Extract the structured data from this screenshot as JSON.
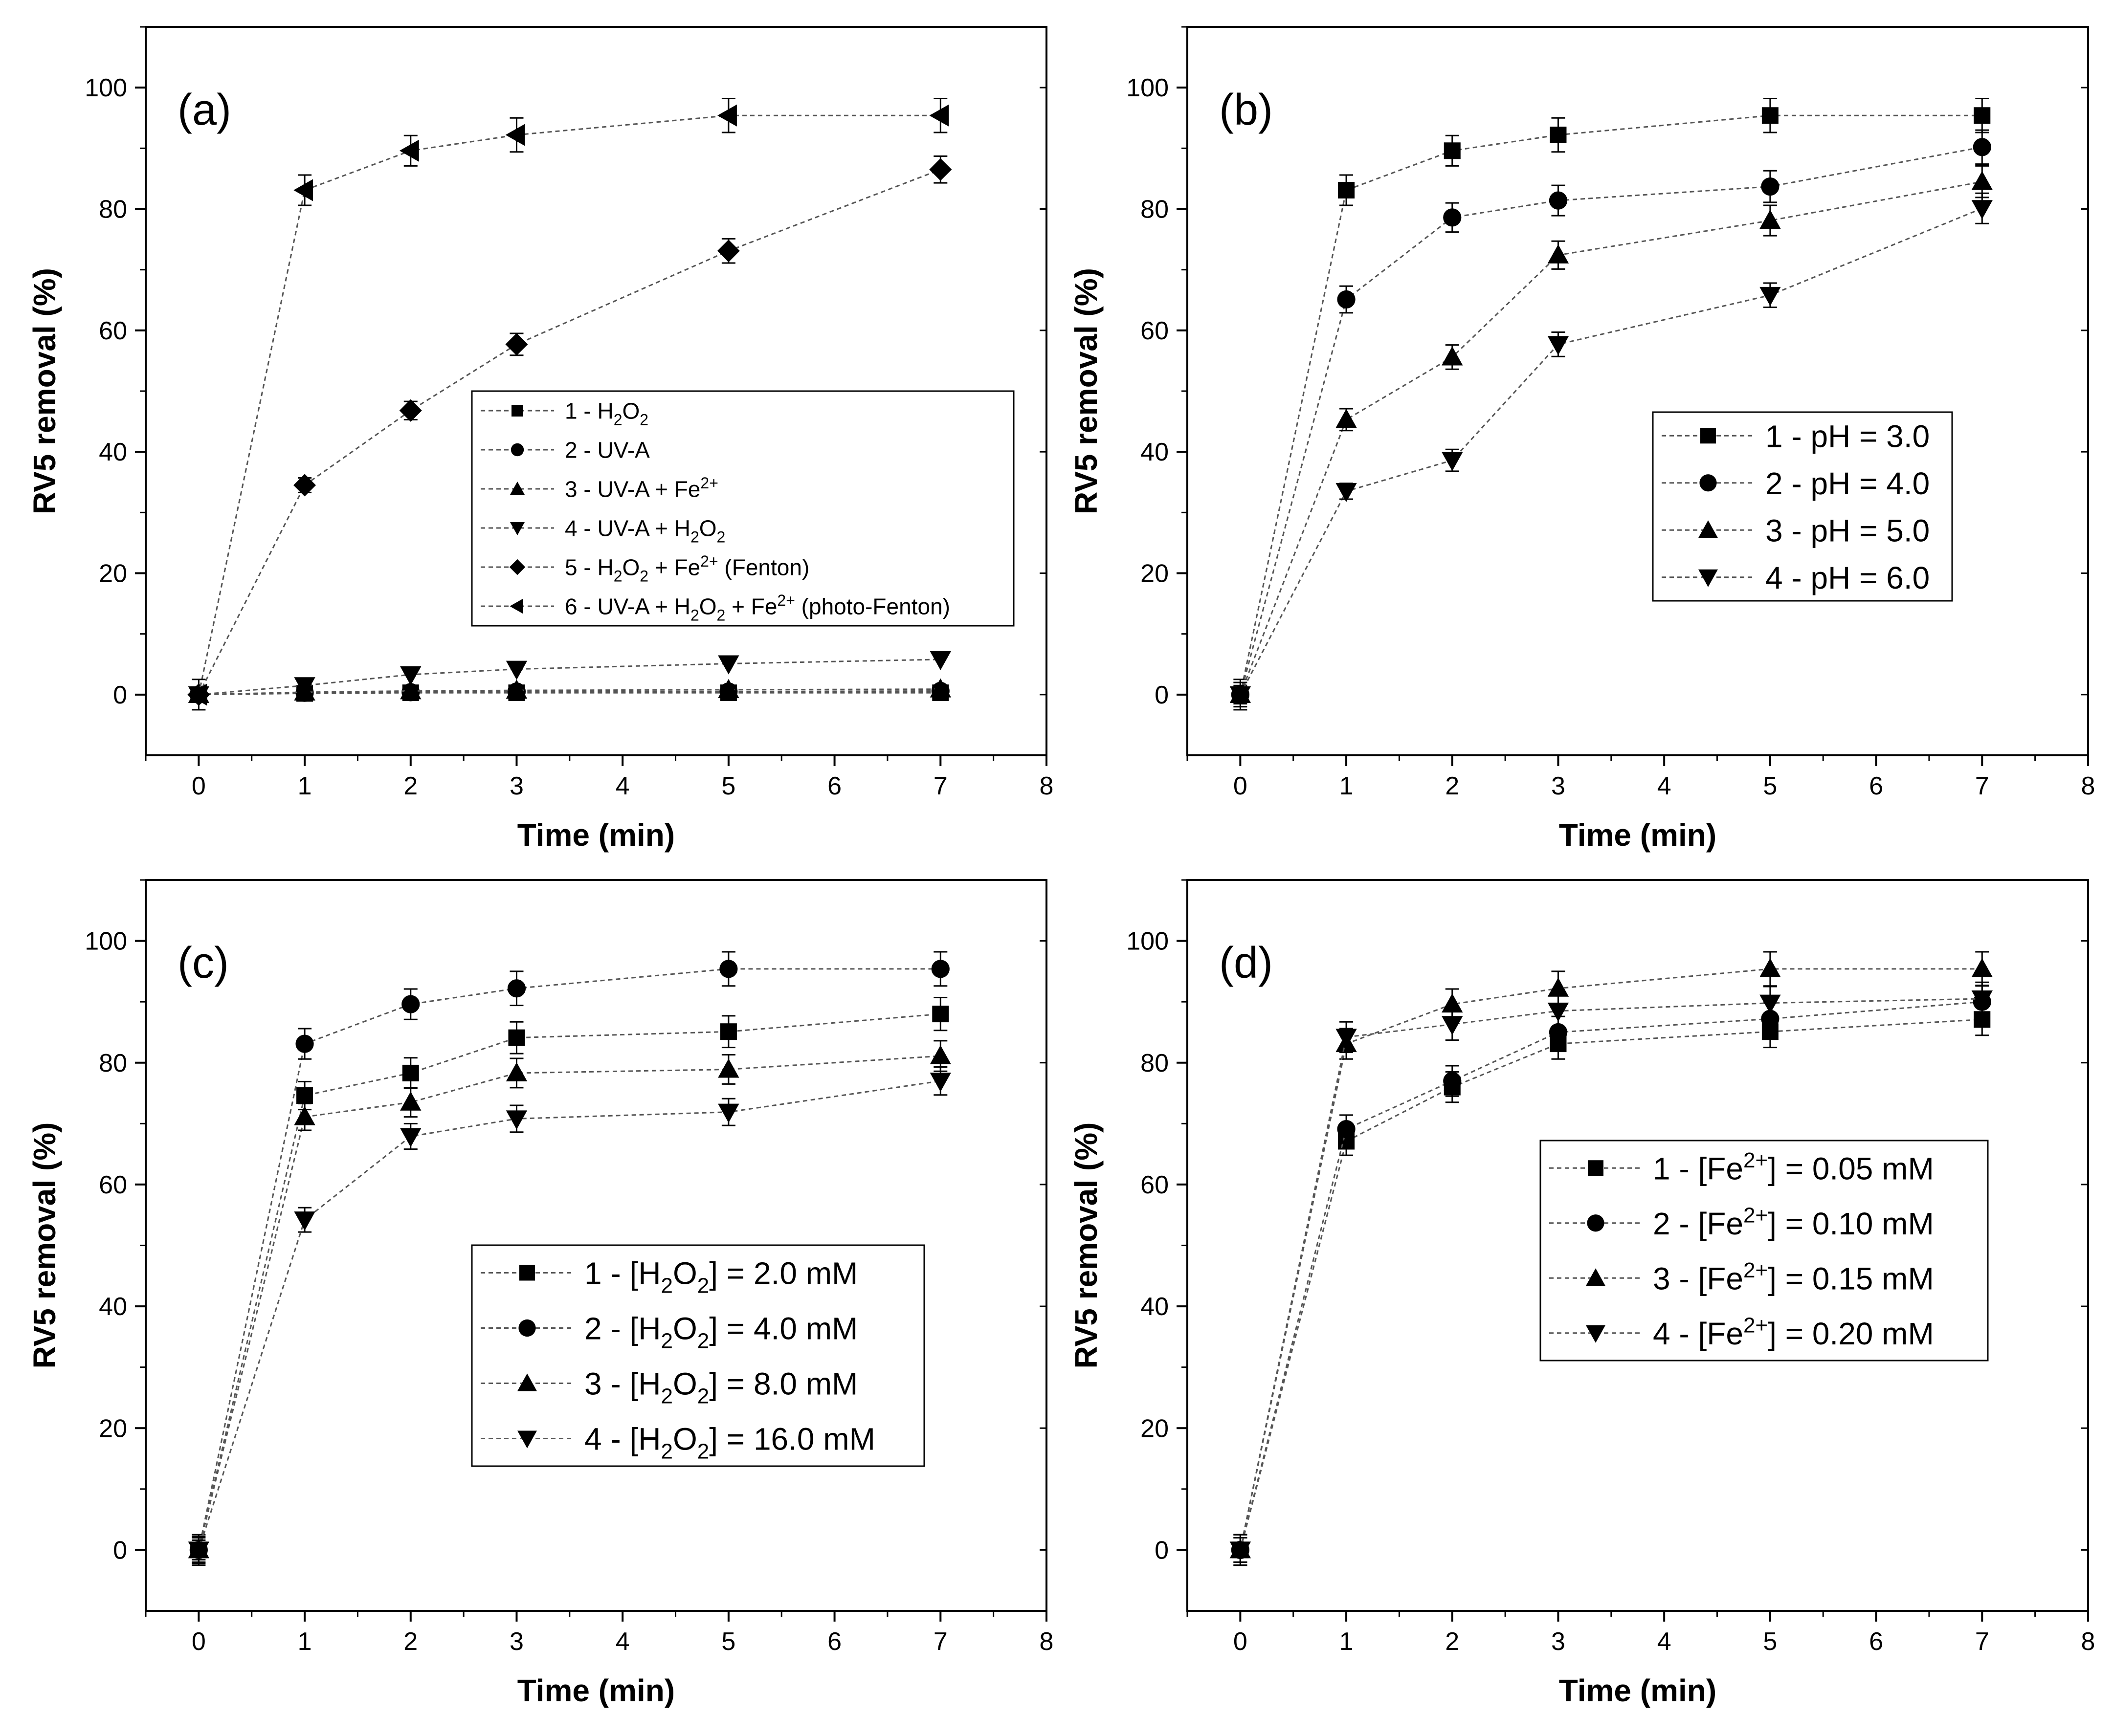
{
  "chart_data": [
    {
      "type": "line",
      "panel_label": "(a)",
      "xlabel": "Time (min)",
      "ylabel": "RV5 removal (%)",
      "xlim": [
        -0.5,
        8
      ],
      "ylim": [
        -10,
        110
      ],
      "xticks": [
        "0",
        "1",
        "2",
        "3",
        "4",
        "5",
        "6",
        "7",
        "8"
      ],
      "yticks": [
        "0",
        "20",
        "40",
        "60",
        "80",
        "100"
      ],
      "legend_position": "center-right",
      "x": [
        0,
        1,
        2,
        3,
        5,
        7
      ],
      "series": [
        {
          "name": "1 - H",
          "sub": "2",
          "suffix": "O",
          "sub2": "2",
          "tail": "",
          "marker": "square",
          "values": [
            0,
            0.2,
            0.3,
            0.3,
            0.3,
            0.3
          ],
          "errors": [
            0.5,
            0.5,
            0.5,
            0.5,
            0.5,
            0.5
          ]
        },
        {
          "name": "2 - UV-A",
          "marker": "circle",
          "values": [
            0,
            0.3,
            0.4,
            0.5,
            0.5,
            0.6
          ],
          "errors": [
            0.5,
            0.5,
            0.5,
            0.5,
            0.5,
            0.5
          ]
        },
        {
          "name": "3 - UV-A + Fe",
          "sup": "2+",
          "marker": "triangle-up",
          "values": [
            0,
            0.4,
            0.6,
            0.7,
            0.8,
            0.9
          ],
          "errors": [
            0.5,
            0.5,
            0.5,
            0.5,
            0.5,
            0.5
          ]
        },
        {
          "name": "4 - UV-A + H",
          "marker": "triangle-down",
          "values": [
            0,
            1.5,
            3.3,
            4.2,
            5.1,
            5.8
          ],
          "errors": [
            0.5,
            0.5,
            0.5,
            0.5,
            0.5,
            0.5
          ]
        },
        {
          "name": "5 - H",
          "marker": "diamond",
          "values": [
            0,
            34.5,
            46.8,
            57.7,
            73.1,
            86.5
          ],
          "errors": [
            1.0,
            1.2,
            1.5,
            1.8,
            2.0,
            2.2
          ]
        },
        {
          "name": "6 - UV-A + H",
          "marker": "triangle-left",
          "values": [
            0,
            83.1,
            89.6,
            92.2,
            95.4,
            95.4
          ],
          "errors": [
            2.5,
            2.5,
            2.5,
            2.8,
            2.8,
            2.8
          ]
        }
      ],
      "legend_entries": [
        [
          {
            "t": "1 - H"
          },
          {
            "t": "2",
            "s": "sub"
          },
          {
            "t": "O"
          },
          {
            "t": "2",
            "s": "sub"
          }
        ],
        [
          {
            "t": "2 - UV-A"
          }
        ],
        [
          {
            "t": "3 - UV-A + Fe"
          },
          {
            "t": "2+",
            "s": "sup"
          }
        ],
        [
          {
            "t": "4 - UV-A + H"
          },
          {
            "t": "2",
            "s": "sub"
          },
          {
            "t": "O"
          },
          {
            "t": "2",
            "s": "sub"
          }
        ],
        [
          {
            "t": "5 - H"
          },
          {
            "t": "2",
            "s": "sub"
          },
          {
            "t": "O"
          },
          {
            "t": "2",
            "s": "sub"
          },
          {
            "t": " + Fe"
          },
          {
            "t": "2+",
            "s": "sup"
          },
          {
            "t": " (Fenton)"
          }
        ],
        [
          {
            "t": "6 - UV-A + H"
          },
          {
            "t": "2",
            "s": "sub"
          },
          {
            "t": "O"
          },
          {
            "t": "2",
            "s": "sub"
          },
          {
            "t": " + Fe"
          },
          {
            "t": "2+",
            "s": "sup"
          },
          {
            "t": " (photo-Fenton)"
          }
        ]
      ]
    },
    {
      "type": "line",
      "panel_label": "(b)",
      "xlabel": "Time (min)",
      "ylabel": "RV5 removal (%)",
      "xlim": [
        -0.5,
        8
      ],
      "ylim": [
        -10,
        110
      ],
      "xticks": [
        "0",
        "1",
        "2",
        "3",
        "4",
        "5",
        "6",
        "7",
        "8"
      ],
      "yticks": [
        "0",
        "20",
        "40",
        "60",
        "80",
        "100"
      ],
      "legend_position": "center-right",
      "x": [
        0,
        1,
        2,
        3,
        5,
        7
      ],
      "series": [
        {
          "name": "1 - pH = 3.0",
          "marker": "square",
          "values": [
            0,
            83.1,
            89.6,
            92.2,
            95.4,
            95.4
          ],
          "errors": [
            2.5,
            2.5,
            2.5,
            2.8,
            2.8,
            2.8
          ]
        },
        {
          "name": "2 - pH = 4.0",
          "marker": "circle",
          "values": [
            0,
            65.1,
            78.6,
            81.4,
            83.7,
            90.2
          ],
          "errors": [
            2.0,
            2.2,
            2.4,
            2.5,
            2.6,
            2.8
          ]
        },
        {
          "name": "3 - pH = 5.0",
          "marker": "triangle-up",
          "values": [
            0,
            45.3,
            55.6,
            72.4,
            78.1,
            84.5
          ],
          "errors": [
            1.5,
            1.8,
            2.0,
            2.3,
            2.5,
            2.6
          ]
        },
        {
          "name": "4 - pH = 6.0",
          "marker": "triangle-down",
          "values": [
            0,
            33.5,
            38.6,
            57.7,
            65.8,
            80.1
          ],
          "errors": [
            1.2,
            1.3,
            1.8,
            2.0,
            2.0,
            2.5
          ]
        }
      ],
      "legend_entries": [
        [
          {
            "t": "1 - pH = 3.0"
          }
        ],
        [
          {
            "t": "2 - pH = 4.0"
          }
        ],
        [
          {
            "t": "3 - pH = 5.0"
          }
        ],
        [
          {
            "t": "4 - pH = 6.0"
          }
        ]
      ]
    },
    {
      "type": "line",
      "panel_label": "(c)",
      "xlabel": "Time (min)",
      "ylabel": "RV5 removal (%)",
      "xlim": [
        -0.5,
        8
      ],
      "ylim": [
        -10,
        110
      ],
      "xticks": [
        "0",
        "1",
        "2",
        "3",
        "4",
        "5",
        "6",
        "7",
        "8"
      ],
      "yticks": [
        "0",
        "20",
        "40",
        "60",
        "80",
        "100"
      ],
      "legend_position": "center-right",
      "x": [
        0,
        1,
        2,
        3,
        5,
        7
      ],
      "series": [
        {
          "name": "1 - [H2O2] = 2.0 mM",
          "marker": "square",
          "values": [
            0,
            74.6,
            78.3,
            84.1,
            85.1,
            88.0
          ],
          "errors": [
            2.2,
            2.3,
            2.5,
            2.6,
            2.6,
            2.7
          ]
        },
        {
          "name": "2 - [H2O2] = 4.0 mM",
          "marker": "circle",
          "values": [
            0,
            83.1,
            89.6,
            92.2,
            95.4,
            95.4
          ],
          "errors": [
            2.5,
            2.5,
            2.5,
            2.8,
            2.8,
            2.8
          ]
        },
        {
          "name": "3 - [H2O2] = 8.0 mM",
          "marker": "triangle-up",
          "values": [
            0,
            71.1,
            73.5,
            78.3,
            78.9,
            81.1
          ],
          "errors": [
            2.0,
            2.2,
            2.4,
            2.4,
            2.4,
            2.5
          ]
        },
        {
          "name": "4 - [H2O2] = 16.0 mM",
          "marker": "triangle-down",
          "values": [
            0,
            54.2,
            67.9,
            70.8,
            71.9,
            77.0
          ],
          "errors": [
            1.6,
            2.0,
            2.1,
            2.2,
            2.2,
            2.3
          ]
        }
      ],
      "legend_entries": [
        [
          {
            "t": "1 - [H"
          },
          {
            "t": "2",
            "s": "sub"
          },
          {
            "t": "O"
          },
          {
            "t": "2",
            "s": "sub"
          },
          {
            "t": "] = 2.0 mM"
          }
        ],
        [
          {
            "t": "2 - [H"
          },
          {
            "t": "2",
            "s": "sub"
          },
          {
            "t": "O"
          },
          {
            "t": "2",
            "s": "sub"
          },
          {
            "t": "] = 4.0 mM"
          }
        ],
        [
          {
            "t": "3 - [H"
          },
          {
            "t": "2",
            "s": "sub"
          },
          {
            "t": "O"
          },
          {
            "t": "2",
            "s": "sub"
          },
          {
            "t": "] = 8.0 mM"
          }
        ],
        [
          {
            "t": "4 - [H"
          },
          {
            "t": "2",
            "s": "sub"
          },
          {
            "t": "O"
          },
          {
            "t": "2",
            "s": "sub"
          },
          {
            "t": "] = 16.0 mM"
          }
        ]
      ]
    },
    {
      "type": "line",
      "panel_label": "(d)",
      "xlabel": "Time (min)",
      "ylabel": "RV5 removal (%)",
      "xlim": [
        -0.5,
        8
      ],
      "ylim": [
        -10,
        110
      ],
      "xticks": [
        "0",
        "1",
        "2",
        "3",
        "4",
        "5",
        "6",
        "7",
        "8"
      ],
      "yticks": [
        "0",
        "20",
        "40",
        "60",
        "80",
        "100"
      ],
      "legend_position": "center-right",
      "x": [
        0,
        1,
        2,
        3,
        5,
        7
      ],
      "series": [
        {
          "name": "1 - [Fe2+] = 0.05 mM",
          "marker": "square",
          "values": [
            0,
            67.1,
            76.0,
            83.1,
            85.1,
            87.1
          ],
          "errors": [
            2.0,
            2.3,
            2.5,
            2.5,
            2.6,
            2.6
          ]
        },
        {
          "name": "2 - [Fe2+] = 0.10 mM",
          "marker": "circle",
          "values": [
            0,
            69.1,
            77.0,
            85.0,
            87.2,
            90.0
          ],
          "errors": [
            2.0,
            2.3,
            2.5,
            2.6,
            2.6,
            2.7
          ]
        },
        {
          "name": "3 - [Fe2+] = 0.15 mM",
          "marker": "triangle-up",
          "values": [
            0,
            83.1,
            89.6,
            92.2,
            95.4,
            95.4
          ],
          "errors": [
            2.5,
            2.5,
            2.5,
            2.8,
            2.8,
            2.8
          ]
        },
        {
          "name": "4 - [Fe2+] = 0.20 mM",
          "marker": "triangle-down",
          "values": [
            0,
            84.2,
            86.3,
            88.5,
            89.8,
            90.5
          ],
          "errors": [
            2.5,
            2.5,
            2.6,
            2.6,
            2.7,
            2.7
          ]
        }
      ],
      "legend_entries": [
        [
          {
            "t": "1 - [Fe"
          },
          {
            "t": "2+",
            "s": "sup"
          },
          {
            "t": "] = 0.05 mM"
          }
        ],
        [
          {
            "t": "2 - [Fe"
          },
          {
            "t": "2+",
            "s": "sup"
          },
          {
            "t": "] = 0.10 mM"
          }
        ],
        [
          {
            "t": "3 - [Fe"
          },
          {
            "t": "2+",
            "s": "sup"
          },
          {
            "t": "] = 0.15 mM"
          }
        ],
        [
          {
            "t": "4 - [Fe"
          },
          {
            "t": "2+",
            "s": "sup"
          },
          {
            "t": "] = 0.20 mM"
          }
        ]
      ]
    }
  ]
}
